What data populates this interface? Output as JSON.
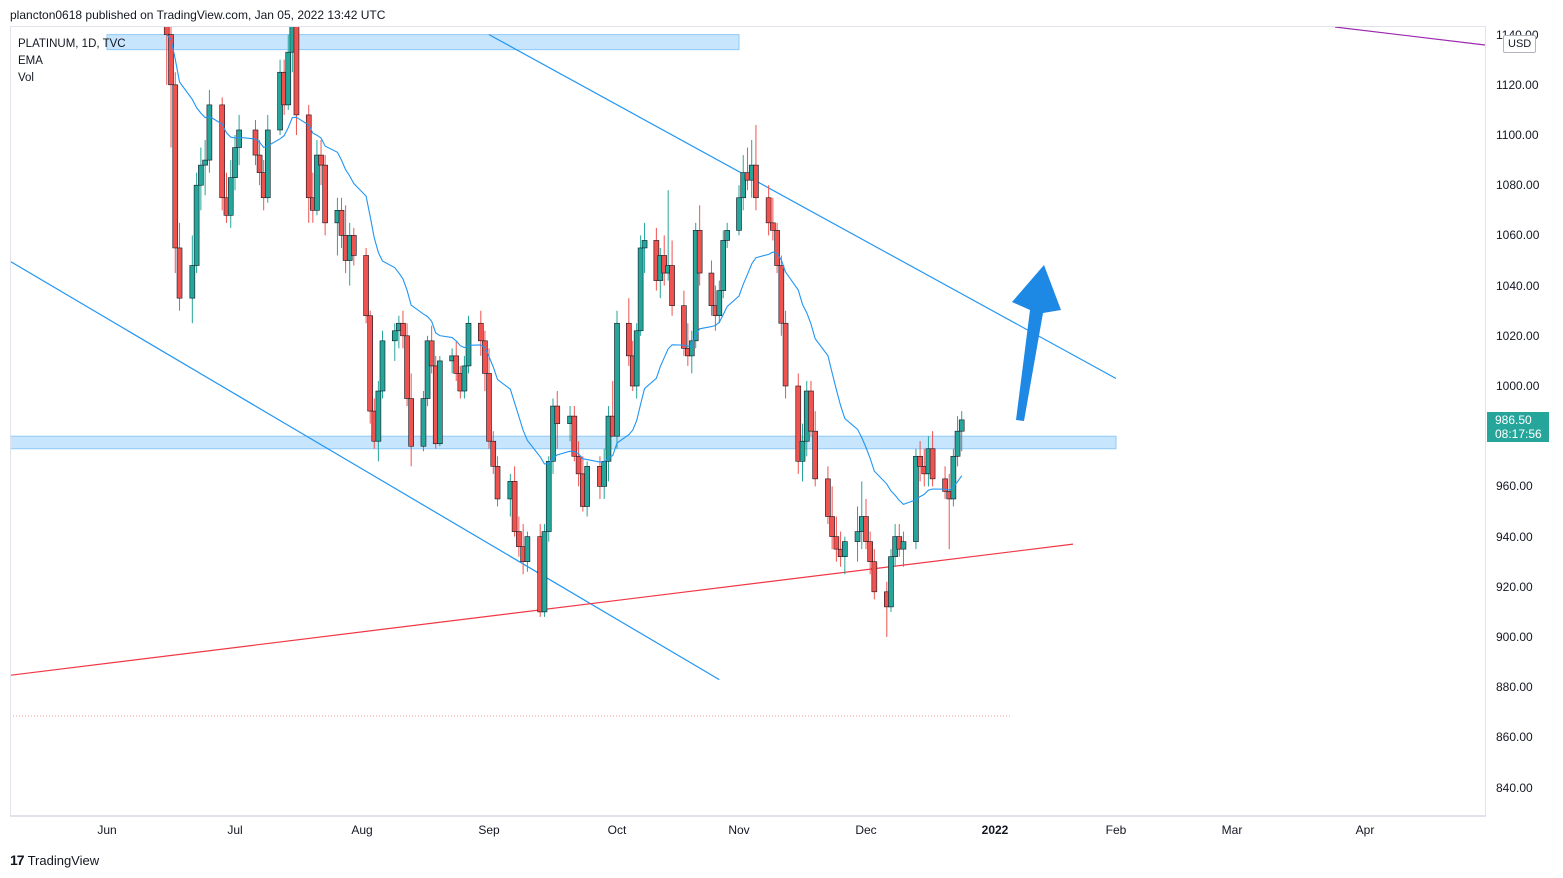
{
  "header": {
    "published": "plancton0618 published on TradingView.com, Jan 05, 2022 13:42 UTC"
  },
  "legend": {
    "symbol": "PLATINUM, 1D, TVC",
    "ema": "EMA",
    "vol": "Vol"
  },
  "price_axis": {
    "currency": "USD",
    "labels": [
      "1140.00",
      "1120.00",
      "1100.00",
      "1080.00",
      "1060.00",
      "1040.00",
      "1020.00",
      "1000.00",
      "980.00",
      "960.00",
      "940.00",
      "920.00",
      "900.00",
      "880.00",
      "860.00",
      "840.00"
    ],
    "last_price": "986.50",
    "countdown": "08:17:56"
  },
  "time_axis": {
    "labels": [
      "Jun",
      "Jul",
      "Aug",
      "Sep",
      "Oct",
      "Nov",
      "Dec",
      "2022",
      "Feb",
      "Mar",
      "Apr"
    ]
  },
  "footer": {
    "brand": "TradingView"
  },
  "colors": {
    "up": "#26a69a",
    "down": "#ef5350",
    "ema": "#2196f3",
    "trend": "#2196f3",
    "support": "#f23645",
    "zone": "rgba(33,150,243,0.25)",
    "arrow": "#1e88e5",
    "purple": "#9c27b0"
  },
  "chart_data": {
    "type": "candlestick",
    "symbol": "PLATINUM, 1D, TVC",
    "ylim": [
      834,
      1144
    ],
    "x_ticks": [
      "Jun",
      "Jul",
      "Aug",
      "Sep",
      "Oct",
      "Nov",
      "Dec",
      "2022",
      "Feb",
      "Mar",
      "Apr"
    ],
    "y_ticks": [
      1140,
      1120,
      1100,
      1080,
      1060,
      1040,
      1020,
      1000,
      980,
      960,
      940,
      920,
      900,
      880,
      860,
      840
    ],
    "last_price": 986.5,
    "zones": [
      {
        "low": 1134,
        "high": 1140,
        "start_date": "2021-06-01",
        "end_date": "2021-11-01"
      },
      {
        "low": 975,
        "high": 980,
        "start_date": "2021-05-01",
        "end_date": "2022-02-01"
      }
    ],
    "trendlines": [
      {
        "name": "upper-channel",
        "points": [
          [
            "2021-09-01",
            1140
          ],
          [
            "2022-02-01",
            1003
          ]
        ]
      },
      {
        "name": "lower-channel",
        "points": [
          [
            "2021-05-01",
            1058
          ],
          [
            "2021-10-27",
            883
          ]
        ]
      },
      {
        "name": "support",
        "points": [
          [
            "2021-05-01",
            883
          ],
          [
            "2022-01-21",
            937
          ]
        ]
      }
    ],
    "candles": [
      [
        "2021-06-15",
        1150,
        1165,
        1120,
        1140
      ],
      [
        "2021-06-16",
        1140,
        1155,
        1095,
        1120
      ],
      [
        "2021-06-17",
        1120,
        1125,
        1045,
        1055
      ],
      [
        "2021-06-18",
        1055,
        1065,
        1030,
        1035
      ],
      [
        "2021-06-21",
        1035,
        1060,
        1025,
        1048
      ],
      [
        "2021-06-22",
        1048,
        1085,
        1045,
        1080
      ],
      [
        "2021-06-23",
        1080,
        1095,
        1070,
        1088
      ],
      [
        "2021-06-24",
        1088,
        1098,
        1076,
        1090
      ],
      [
        "2021-06-25",
        1090,
        1118,
        1085,
        1112
      ],
      [
        "2021-06-28",
        1112,
        1115,
        1070,
        1075
      ],
      [
        "2021-06-29",
        1075,
        1085,
        1065,
        1068
      ],
      [
        "2021-06-30",
        1068,
        1090,
        1063,
        1083
      ],
      [
        "2021-07-01",
        1083,
        1100,
        1078,
        1095
      ],
      [
        "2021-07-02",
        1095,
        1108,
        1088,
        1102
      ],
      [
        "2021-07-06",
        1102,
        1106,
        1088,
        1092
      ],
      [
        "2021-07-07",
        1092,
        1098,
        1080,
        1085
      ],
      [
        "2021-07-08",
        1085,
        1090,
        1070,
        1075
      ],
      [
        "2021-07-09",
        1075,
        1108,
        1073,
        1102
      ],
      [
        "2021-07-12",
        1102,
        1130,
        1100,
        1125
      ],
      [
        "2021-07-13",
        1125,
        1130,
        1108,
        1112
      ],
      [
        "2021-07-14",
        1112,
        1140,
        1110,
        1133
      ],
      [
        "2021-07-15",
        1133,
        1150,
        1125,
        1145
      ],
      [
        "2021-07-16",
        1145,
        1150,
        1100,
        1108
      ],
      [
        "2021-07-19",
        1108,
        1112,
        1065,
        1075
      ],
      [
        "2021-07-20",
        1075,
        1085,
        1065,
        1070
      ],
      [
        "2021-07-21",
        1070,
        1098,
        1068,
        1092
      ],
      [
        "2021-07-22",
        1092,
        1098,
        1080,
        1088
      ],
      [
        "2021-07-23",
        1088,
        1092,
        1060,
        1065
      ],
      [
        "2021-07-26",
        1065,
        1075,
        1052,
        1070
      ],
      [
        "2021-07-27",
        1070,
        1075,
        1055,
        1060
      ],
      [
        "2021-07-28",
        1060,
        1072,
        1045,
        1050
      ],
      [
        "2021-07-29",
        1050,
        1065,
        1040,
        1060
      ],
      [
        "2021-07-30",
        1060,
        1063,
        1048,
        1052
      ],
      [
        "2021-08-02",
        1052,
        1055,
        1025,
        1028
      ],
      [
        "2021-08-03",
        1028,
        1030,
        985,
        990
      ],
      [
        "2021-08-04",
        990,
        995,
        975,
        978
      ],
      [
        "2021-08-05",
        978,
        1002,
        970,
        998
      ],
      [
        "2021-08-06",
        998,
        1022,
        995,
        1018
      ],
      [
        "2021-08-09",
        1018,
        1025,
        1010,
        1022
      ],
      [
        "2021-08-10",
        1022,
        1028,
        1015,
        1025
      ],
      [
        "2021-08-11",
        1025,
        1030,
        1015,
        1020
      ],
      [
        "2021-08-12",
        1020,
        1025,
        992,
        995
      ],
      [
        "2021-08-13",
        995,
        1005,
        968,
        976
      ],
      [
        "2021-08-16",
        976,
        998,
        974,
        995
      ],
      [
        "2021-08-17",
        995,
        1020,
        992,
        1018
      ],
      [
        "2021-08-18",
        1018,
        1024,
        1005,
        1008
      ],
      [
        "2021-08-19",
        1008,
        1012,
        975,
        977
      ],
      [
        "2021-08-20",
        977,
        1012,
        976,
        1010
      ],
      [
        "2021-08-23",
        1010,
        1015,
        1005,
        1012
      ],
      [
        "2021-08-24",
        1012,
        1018,
        1002,
        1005
      ],
      [
        "2021-08-25",
        1005,
        1008,
        995,
        998
      ],
      [
        "2021-08-26",
        998,
        1012,
        995,
        1008
      ],
      [
        "2021-08-27",
        1008,
        1028,
        1005,
        1025
      ],
      [
        "2021-08-30",
        1025,
        1030,
        1012,
        1018
      ],
      [
        "2021-08-31",
        1018,
        1022,
        998,
        1005
      ],
      [
        "2021-09-01",
        1005,
        1015,
        975,
        978
      ],
      [
        "2021-09-02",
        978,
        982,
        965,
        968
      ],
      [
        "2021-09-03",
        968,
        972,
        952,
        955
      ],
      [
        "2021-09-06",
        955,
        965,
        948,
        962
      ],
      [
        "2021-09-07",
        962,
        968,
        940,
        942
      ],
      [
        "2021-09-08",
        942,
        948,
        932,
        936
      ],
      [
        "2021-09-09",
        936,
        945,
        925,
        930
      ],
      [
        "2021-09-10",
        930,
        942,
        926,
        940
      ],
      [
        "2021-09-13",
        940,
        945,
        908,
        910
      ],
      [
        "2021-09-14",
        910,
        945,
        908,
        942
      ],
      [
        "2021-09-15",
        942,
        972,
        938,
        970
      ],
      [
        "2021-09-16",
        970,
        995,
        965,
        992
      ],
      [
        "2021-09-17",
        992,
        998,
        975,
        985
      ],
      [
        "2021-09-20",
        985,
        992,
        978,
        988
      ],
      [
        "2021-09-21",
        988,
        992,
        970,
        972
      ],
      [
        "2021-09-22",
        972,
        978,
        960,
        965
      ],
      [
        "2021-09-23",
        965,
        972,
        950,
        952
      ],
      [
        "2021-09-24",
        952,
        970,
        948,
        968
      ],
      [
        "2021-09-27",
        968,
        972,
        955,
        960
      ],
      [
        "2021-09-28",
        960,
        975,
        955,
        970
      ],
      [
        "2021-09-29",
        970,
        992,
        962,
        988
      ],
      [
        "2021-09-30",
        988,
        1002,
        982,
        980
      ],
      [
        "2021-10-01",
        980,
        1030,
        975,
        1025
      ],
      [
        "2021-10-04",
        1025,
        1035,
        1008,
        1012
      ],
      [
        "2021-10-05",
        1012,
        1018,
        998,
        1000
      ],
      [
        "2021-10-06",
        1000,
        1025,
        995,
        1022
      ],
      [
        "2021-10-07",
        1022,
        1060,
        1020,
        1055
      ],
      [
        "2021-10-08",
        1055,
        1065,
        1045,
        1058
      ],
      [
        "2021-10-11",
        1058,
        1063,
        1038,
        1042
      ],
      [
        "2021-10-12",
        1042,
        1055,
        1035,
        1052
      ],
      [
        "2021-10-13",
        1052,
        1060,
        1040,
        1045
      ],
      [
        "2021-10-14",
        1045,
        1078,
        1042,
        1048
      ],
      [
        "2021-10-15",
        1048,
        1058,
        1028,
        1032
      ],
      [
        "2021-10-18",
        1032,
        1038,
        1012,
        1015
      ],
      [
        "2021-10-19",
        1015,
        1025,
        1008,
        1012
      ],
      [
        "2021-10-20",
        1012,
        1022,
        1005,
        1018
      ],
      [
        "2021-10-21",
        1018,
        1065,
        1015,
        1062
      ],
      [
        "2021-10-22",
        1062,
        1072,
        1040,
        1045
      ],
      [
        "2021-10-25",
        1045,
        1050,
        1028,
        1032
      ],
      [
        "2021-10-26",
        1032,
        1040,
        1022,
        1028
      ],
      [
        "2021-10-27",
        1028,
        1042,
        1025,
        1038
      ],
      [
        "2021-10-28",
        1038,
        1062,
        1035,
        1058
      ],
      [
        "2021-10-29",
        1058,
        1065,
        1055,
        1062
      ],
      [
        "2021-11-01",
        1062,
        1080,
        1060,
        1075
      ],
      [
        "2021-11-02",
        1075,
        1092,
        1070,
        1085
      ],
      [
        "2021-11-03",
        1085,
        1095,
        1078,
        1082
      ],
      [
        "2021-11-04",
        1082,
        1098,
        1075,
        1088
      ],
      [
        "2021-11-05",
        1088,
        1104,
        1070,
        1075
      ],
      [
        "2021-11-08",
        1075,
        1080,
        1060,
        1065
      ],
      [
        "2021-11-09",
        1065,
        1075,
        1058,
        1062
      ],
      [
        "2021-11-10",
        1062,
        1065,
        1045,
        1048
      ],
      [
        "2021-11-11",
        1048,
        1052,
        1020,
        1025
      ],
      [
        "2021-11-12",
        1025,
        1030,
        995,
        1000
      ],
      [
        "2021-11-15",
        1000,
        1005,
        965,
        970
      ],
      [
        "2021-11-16",
        970,
        985,
        962,
        978
      ],
      [
        "2021-11-17",
        978,
        1002,
        972,
        998
      ],
      [
        "2021-11-18",
        998,
        1002,
        980,
        982
      ],
      [
        "2021-11-19",
        982,
        990,
        960,
        963
      ],
      [
        "2021-11-22",
        963,
        968,
        945,
        948
      ],
      [
        "2021-11-23",
        948,
        960,
        935,
        940
      ],
      [
        "2021-11-24",
        940,
        948,
        930,
        935
      ],
      [
        "2021-11-25",
        935,
        942,
        928,
        932
      ],
      [
        "2021-11-26",
        932,
        940,
        925,
        938
      ],
      [
        "2021-11-29",
        938,
        952,
        930,
        942
      ],
      [
        "2021-11-30",
        942,
        962,
        935,
        948
      ],
      [
        "2021-12-01",
        948,
        955,
        935,
        938
      ],
      [
        "2021-12-02",
        938,
        942,
        925,
        930
      ],
      [
        "2021-12-03",
        930,
        935,
        915,
        918
      ],
      [
        "2021-12-06",
        918,
        922,
        900,
        912
      ],
      [
        "2021-12-07",
        912,
        935,
        910,
        932
      ],
      [
        "2021-12-08",
        932,
        945,
        928,
        940
      ],
      [
        "2021-12-09",
        940,
        945,
        932,
        935
      ],
      [
        "2021-12-10",
        935,
        942,
        928,
        938
      ],
      [
        "2021-12-13",
        938,
        975,
        935,
        972
      ],
      [
        "2021-12-14",
        972,
        978,
        962,
        968
      ],
      [
        "2021-12-15",
        968,
        975,
        960,
        965
      ],
      [
        "2021-12-16",
        965,
        980,
        960,
        975
      ],
      [
        "2021-12-17",
        975,
        982,
        960,
        963
      ],
      [
        "2021-12-20",
        963,
        968,
        955,
        958
      ],
      [
        "2021-12-21",
        958,
        965,
        935,
        955
      ],
      [
        "2021-12-22",
        955,
        975,
        952,
        972
      ],
      [
        "2021-12-23",
        972,
        988,
        968,
        982
      ],
      [
        "2021-12-24",
        982,
        990,
        974,
        986.5
      ]
    ]
  }
}
